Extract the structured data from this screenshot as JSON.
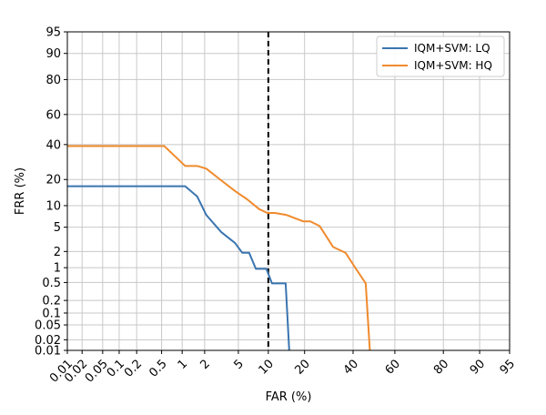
{
  "chart_data": {
    "type": "line",
    "title": "",
    "xlabel": "FAR (%)",
    "ylabel": "FRR (%)",
    "axis_scale": "normal-deviate (DET)",
    "xlim": [
      0.01,
      95
    ],
    "ylim": [
      0.01,
      95
    ],
    "grid": true,
    "legend_position": "top-right",
    "x_ticks": [
      0.01,
      0.02,
      0.05,
      0.1,
      0.2,
      0.5,
      1,
      2,
      5,
      10,
      20,
      40,
      60,
      80,
      90,
      95
    ],
    "x_tick_labels": [
      "0.01",
      "0.02",
      "0.05",
      "0.1",
      "0.2",
      "0.5",
      "1",
      "2",
      "5",
      "10",
      "20",
      "40",
      "60",
      "80",
      "90",
      "95"
    ],
    "y_ticks": [
      0.01,
      0.02,
      0.05,
      0.1,
      0.2,
      0.5,
      1,
      2,
      5,
      10,
      20,
      40,
      60,
      80,
      90,
      95
    ],
    "y_tick_labels": [
      "0.01",
      "0.02",
      "0.05",
      "0.1",
      "0.2",
      "0.5",
      "1",
      "2",
      "5",
      "10",
      "20",
      "40",
      "60",
      "80",
      "90",
      "95"
    ],
    "reference_line": {
      "axis": "x",
      "value": 10,
      "style": "dashed",
      "color": "#000000"
    },
    "series": [
      {
        "name": "IQM+SVM: LQ",
        "color": "#3a75b0",
        "points": [
          [
            0.01,
            17
          ],
          [
            1.1,
            17
          ],
          [
            1.6,
            13
          ],
          [
            2.1,
            7.5
          ],
          [
            3.2,
            4.2
          ],
          [
            4.6,
            2.8
          ],
          [
            5.5,
            1.9
          ],
          [
            6.5,
            1.9
          ],
          [
            7.6,
            0.95
          ],
          [
            9.6,
            0.95
          ],
          [
            10.8,
            0.48
          ],
          [
            12,
            0.48
          ],
          [
            14.2,
            0.48
          ],
          [
            15.2,
            0.01
          ]
        ]
      },
      {
        "name": "IQM+SVM: HQ",
        "color": "#f08a2c",
        "points": [
          [
            0.01,
            39
          ],
          [
            0.55,
            39
          ],
          [
            1.1,
            27
          ],
          [
            1.6,
            27
          ],
          [
            2.1,
            25.5
          ],
          [
            3.1,
            20
          ],
          [
            4.6,
            15
          ],
          [
            6.2,
            12
          ],
          [
            8.2,
            9
          ],
          [
            9.8,
            8
          ],
          [
            11.5,
            8
          ],
          [
            14.5,
            7.5
          ],
          [
            19.5,
            6.1
          ],
          [
            22,
            6.1
          ],
          [
            25.5,
            5.2
          ],
          [
            31,
            2.4
          ],
          [
            36.5,
            1.9
          ],
          [
            41,
            1
          ],
          [
            46,
            0.48
          ],
          [
            48,
            0.01
          ]
        ]
      }
    ]
  }
}
